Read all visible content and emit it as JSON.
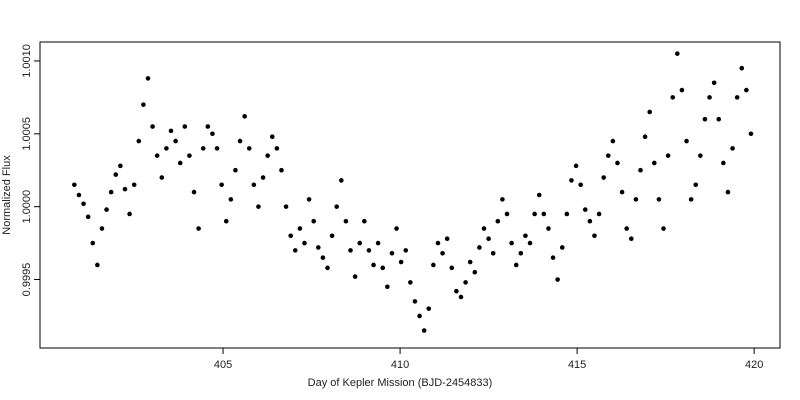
{
  "chart_data": {
    "type": "scatter",
    "x_label": "Day of Kepler Mission (BJD-2454833)",
    "y_label": "Normalized Flux",
    "color": "#000000",
    "xlim": [
      399.83,
      420.73
    ],
    "xticks": [
      405,
      410,
      415,
      420
    ],
    "ylim": [
      0.99903,
      1.00113
    ],
    "yticks": [
      {
        "value": 0.9995,
        "label": "0.9995"
      },
      {
        "value": 1.0,
        "label": "1.0000"
      },
      {
        "value": 1.0005,
        "label": "1.0005"
      },
      {
        "value": 1.001,
        "label": "1.0010"
      }
    ],
    "x": [
      400.8,
      400.93,
      401.06,
      401.19,
      401.32,
      401.45,
      401.58,
      401.71,
      401.84,
      401.97,
      402.1,
      402.23,
      402.36,
      402.49,
      402.62,
      402.75,
      402.88,
      403.01,
      403.14,
      403.27,
      403.4,
      403.53,
      403.66,
      403.79,
      403.92,
      404.05,
      404.18,
      404.31,
      404.44,
      404.57,
      404.7,
      404.83,
      404.96,
      405.09,
      405.22,
      405.35,
      405.48,
      405.61,
      405.74,
      405.87,
      406.0,
      406.13,
      406.26,
      406.39,
      406.52,
      406.65,
      406.78,
      406.91,
      407.04,
      407.17,
      407.3,
      407.43,
      407.56,
      407.69,
      407.82,
      407.95,
      408.08,
      408.21,
      408.34,
      408.47,
      408.6,
      408.73,
      408.86,
      408.99,
      409.12,
      409.25,
      409.38,
      409.51,
      409.64,
      409.77,
      409.9,
      410.03,
      410.16,
      410.29,
      410.42,
      410.55,
      410.68,
      410.81,
      410.94,
      411.07,
      411.2,
      411.33,
      411.46,
      411.59,
      411.72,
      411.85,
      411.98,
      412.11,
      412.24,
      412.37,
      412.5,
      412.63,
      412.76,
      412.89,
      413.02,
      413.15,
      413.28,
      413.41,
      413.54,
      413.67,
      413.8,
      413.93,
      414.06,
      414.19,
      414.32,
      414.45,
      414.58,
      414.71,
      414.84,
      414.97,
      415.1,
      415.23,
      415.36,
      415.49,
      415.62,
      415.75,
      415.88,
      416.01,
      416.14,
      416.27,
      416.4,
      416.53,
      416.66,
      416.79,
      416.92,
      417.05,
      417.18,
      417.31,
      417.44,
      417.57,
      417.7,
      417.83,
      417.96,
      418.09,
      418.22,
      418.35,
      418.48,
      418.61,
      418.74,
      418.87,
      419.0,
      419.13,
      419.26,
      419.39,
      419.52,
      419.65,
      419.78,
      419.91
    ],
    "y": [
      1.00015,
      1.00008,
      1.00002,
      0.99993,
      0.99975,
      0.9996,
      0.99985,
      0.99998,
      1.0001,
      1.00022,
      1.00028,
      1.00012,
      0.99995,
      1.00015,
      1.00045,
      1.0007,
      1.00088,
      1.00055,
      1.00035,
      1.0002,
      1.0004,
      1.00052,
      1.00045,
      1.0003,
      1.00055,
      1.00035,
      1.0001,
      0.99985,
      1.0004,
      1.00055,
      1.0005,
      1.0004,
      1.00015,
      0.9999,
      1.00005,
      1.00025,
      1.00045,
      1.00062,
      1.0004,
      1.00015,
      1.0,
      1.0002,
      1.00035,
      1.00048,
      1.0004,
      1.00025,
      1.0,
      0.9998,
      0.9997,
      0.99985,
      0.99975,
      1.00005,
      0.9999,
      0.99972,
      0.99965,
      0.99958,
      0.9998,
      1.0,
      1.00018,
      0.9999,
      0.9997,
      0.99952,
      0.99975,
      0.9999,
      0.9997,
      0.9996,
      0.99975,
      0.99958,
      0.99945,
      0.99968,
      0.99985,
      0.99962,
      0.9997,
      0.99948,
      0.99935,
      0.99925,
      0.99915,
      0.9993,
      0.9996,
      0.99975,
      0.99968,
      0.99978,
      0.99958,
      0.99942,
      0.99938,
      0.99948,
      0.99962,
      0.99955,
      0.99972,
      0.99985,
      0.99978,
      0.99968,
      0.9999,
      1.00005,
      0.99995,
      0.99975,
      0.9996,
      0.99968,
      0.9998,
      0.99975,
      0.99995,
      1.00008,
      0.99995,
      0.99985,
      0.99965,
      0.9995,
      0.99972,
      0.99995,
      1.00018,
      1.00028,
      1.00015,
      0.99998,
      0.9999,
      0.9998,
      0.99995,
      1.0002,
      1.00035,
      1.00045,
      1.0003,
      1.0001,
      0.99985,
      0.99978,
      1.00005,
      1.00025,
      1.00048,
      1.00065,
      1.0003,
      1.00005,
      0.99985,
      1.00035,
      1.00075,
      1.00105,
      1.0008,
      1.00045,
      1.00005,
      1.00015,
      1.00035,
      1.0006,
      1.00075,
      1.00085,
      1.0006,
      1.0003,
      1.0001,
      1.0004,
      1.00075,
      1.00095,
      1.0008,
      1.0005
    ]
  }
}
